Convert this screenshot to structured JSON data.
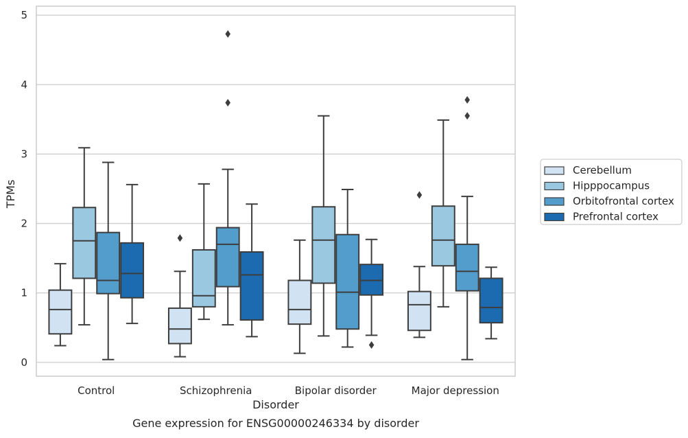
{
  "chart_data": {
    "type": "box",
    "caption": "Gene expression for ENSG00000246334 by disorder",
    "xlabel": "Disorder",
    "ylabel": "TPMs",
    "ylim": [
      -0.2,
      5.13
    ],
    "yticks": [
      0,
      1,
      2,
      3,
      4,
      5
    ],
    "grid": "horizontal",
    "legend_placement": "right, outside plot",
    "categories": [
      "Control",
      "Schizophrenia",
      "Bipolar disorder",
      "Major depression"
    ],
    "series": [
      {
        "name": "Cerebellum",
        "color": "#d1e2f2",
        "boxes": [
          {
            "whislo": 0.24,
            "q1": 0.41,
            "med": 0.76,
            "q3": 1.04,
            "whishi": 1.42,
            "fliers": []
          },
          {
            "whislo": 0.08,
            "q1": 0.27,
            "med": 0.48,
            "q3": 0.78,
            "whishi": 1.31,
            "fliers": [
              1.79
            ]
          },
          {
            "whislo": 0.13,
            "q1": 0.55,
            "med": 0.76,
            "q3": 1.18,
            "whishi": 1.76,
            "fliers": []
          },
          {
            "whislo": 0.36,
            "q1": 0.46,
            "med": 0.83,
            "q3": 1.02,
            "whishi": 1.38,
            "fliers": [
              2.41
            ]
          }
        ]
      },
      {
        "name": "Hipppocampus",
        "color": "#9ac8e0",
        "boxes": [
          {
            "whislo": 0.54,
            "q1": 1.21,
            "med": 1.75,
            "q3": 2.23,
            "whishi": 3.09,
            "fliers": []
          },
          {
            "whislo": 0.62,
            "q1": 0.8,
            "med": 0.96,
            "q3": 1.62,
            "whishi": 2.57,
            "fliers": []
          },
          {
            "whislo": 0.38,
            "q1": 1.14,
            "med": 1.76,
            "q3": 2.24,
            "whishi": 3.55,
            "fliers": []
          },
          {
            "whislo": 0.8,
            "q1": 1.39,
            "med": 1.76,
            "q3": 2.25,
            "whishi": 3.49,
            "fliers": []
          }
        ]
      },
      {
        "name": "Orbitofrontal cortex",
        "color": "#529dcc",
        "boxes": [
          {
            "whislo": 0.04,
            "q1": 0.99,
            "med": 1.18,
            "q3": 1.87,
            "whishi": 2.88,
            "fliers": []
          },
          {
            "whislo": 0.54,
            "q1": 1.09,
            "med": 1.7,
            "q3": 1.94,
            "whishi": 2.78,
            "fliers": [
              3.74,
              4.73
            ]
          },
          {
            "whislo": 0.22,
            "q1": 0.48,
            "med": 1.01,
            "q3": 1.84,
            "whishi": 2.49,
            "fliers": []
          },
          {
            "whislo": 0.04,
            "q1": 1.03,
            "med": 1.31,
            "q3": 1.7,
            "whishi": 2.39,
            "fliers": [
              3.55,
              3.78
            ]
          }
        ]
      },
      {
        "name": "Prefrontal cortex",
        "color": "#1c6bb0",
        "boxes": [
          {
            "whislo": 0.56,
            "q1": 0.93,
            "med": 1.28,
            "q3": 1.72,
            "whishi": 2.56,
            "fliers": []
          },
          {
            "whislo": 0.37,
            "q1": 0.61,
            "med": 1.26,
            "q3": 1.59,
            "whishi": 2.28,
            "fliers": []
          },
          {
            "whislo": 0.39,
            "q1": 0.97,
            "med": 1.18,
            "q3": 1.41,
            "whishi": 1.77,
            "fliers": [
              0.25
            ]
          },
          {
            "whislo": 0.34,
            "q1": 0.57,
            "med": 0.79,
            "q3": 1.21,
            "whishi": 1.37,
            "fliers": []
          }
        ]
      }
    ]
  }
}
